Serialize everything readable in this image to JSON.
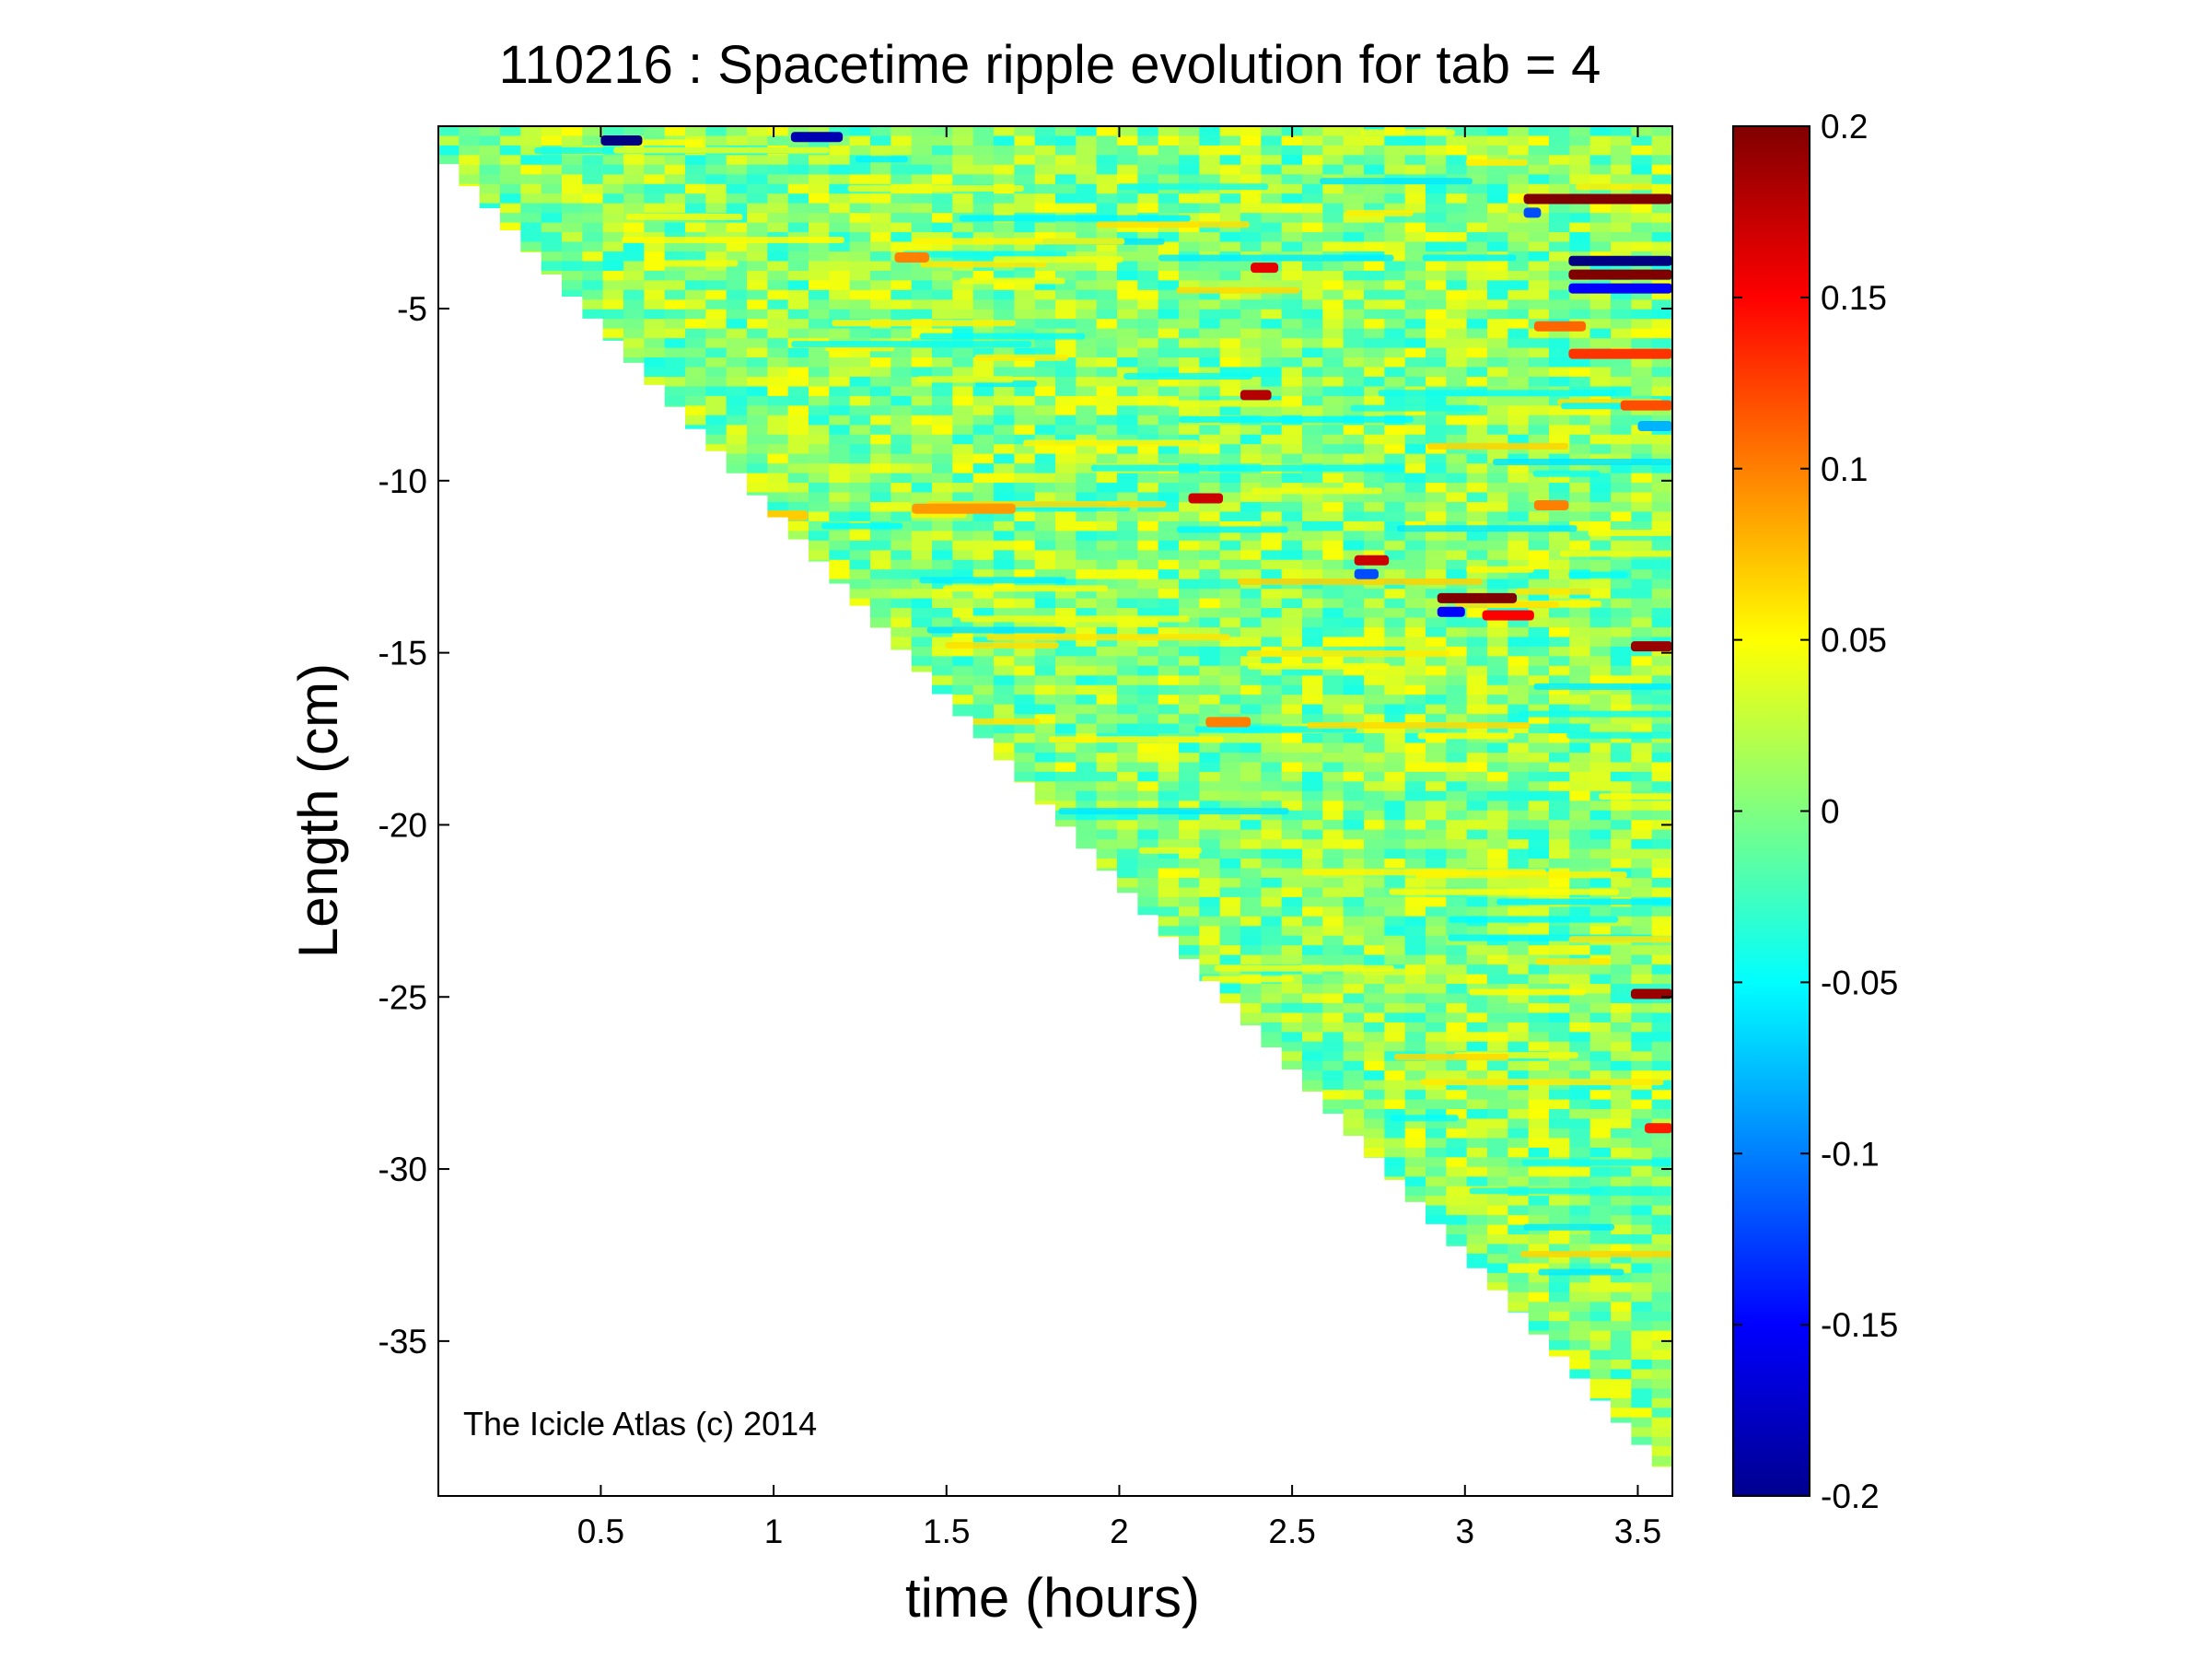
{
  "chart_data": {
    "type": "heatmap",
    "title": "110216 : Spacetime ripple evolution for tab = 4",
    "xlabel": "time (hours)",
    "ylabel": "Length (cm)",
    "xlim": [
      0.03,
      3.6
    ],
    "ylim": [
      -39.5,
      0.3
    ],
    "xticks": [
      0.5,
      1,
      1.5,
      2,
      2.5,
      3,
      3.5
    ],
    "xtick_labels": [
      "0.5",
      "1",
      "1.5",
      "2",
      "2.5",
      "3",
      "3.5"
    ],
    "yticks": [
      -5,
      -10,
      -15,
      -20,
      -25,
      -30,
      -35
    ],
    "ytick_labels": [
      "-5",
      "-10",
      "-15",
      "-20",
      "-25",
      "-30",
      "-35"
    ],
    "colorbar": {
      "colormap": "jet",
      "clim": [
        -0.2,
        0.2
      ],
      "ticks": [
        0.2,
        0.15,
        0.1,
        0.05,
        0,
        -0.05,
        -0.1,
        -0.15,
        -0.2
      ],
      "tick_labels": [
        "0.2",
        "0.15",
        "0.1",
        "0.05",
        "0",
        "-0.05",
        "-0.1",
        "-0.15",
        "-0.2"
      ]
    },
    "data_boundary": {
      "description_units": "lowest measured length (cm) at a given time (hours)",
      "points": [
        [
          0.03,
          -0.8
        ],
        [
          3.6,
          -39.3
        ]
      ]
    },
    "background_value": 0,
    "features": [
      {
        "t_start": 3.17,
        "t_end": 3.6,
        "length": -1.8,
        "value": 0.2
      },
      {
        "t_start": 3.17,
        "t_end": 3.22,
        "length": -2.2,
        "value": -0.12
      },
      {
        "t_start": 3.3,
        "t_end": 3.6,
        "length": -4.0,
        "value": 0.2
      },
      {
        "t_start": 3.3,
        "t_end": 3.6,
        "length": -3.6,
        "value": -0.2
      },
      {
        "t_start": 3.3,
        "t_end": 3.6,
        "length": -4.4,
        "value": -0.15
      },
      {
        "t_start": 2.92,
        "t_end": 3.15,
        "length": -13.4,
        "value": 0.2
      },
      {
        "t_start": 2.92,
        "t_end": 3.0,
        "length": -13.8,
        "value": -0.15
      },
      {
        "t_start": 3.05,
        "t_end": 3.2,
        "length": -13.9,
        "value": 0.15
      },
      {
        "t_start": 2.68,
        "t_end": 2.78,
        "length": -12.3,
        "value": 0.17
      },
      {
        "t_start": 2.68,
        "t_end": 2.75,
        "length": -12.7,
        "value": -0.12
      },
      {
        "t_start": 2.2,
        "t_end": 2.3,
        "length": -10.5,
        "value": 0.17
      },
      {
        "t_start": 2.35,
        "t_end": 2.44,
        "length": -7.5,
        "value": 0.18
      },
      {
        "t_start": 2.38,
        "t_end": 2.46,
        "length": -3.8,
        "value": 0.16
      },
      {
        "t_start": 3.48,
        "t_end": 3.6,
        "length": -14.8,
        "value": 0.19
      },
      {
        "t_start": 3.48,
        "t_end": 3.6,
        "length": -24.9,
        "value": 0.19
      },
      {
        "t_start": 3.52,
        "t_end": 3.6,
        "length": -28.8,
        "value": 0.14
      },
      {
        "t_start": 3.45,
        "t_end": 3.6,
        "length": -7.8,
        "value": 0.12
      },
      {
        "t_start": 3.5,
        "t_end": 3.6,
        "length": -8.4,
        "value": -0.08
      },
      {
        "t_start": 0.5,
        "t_end": 0.62,
        "length": -0.1,
        "value": -0.2
      },
      {
        "t_start": 1.05,
        "t_end": 1.2,
        "length": 0.0,
        "value": -0.18
      },
      {
        "t_start": 3.3,
        "t_end": 3.6,
        "length": -6.3,
        "value": 0.13
      },
      {
        "t_start": 3.2,
        "t_end": 3.35,
        "length": -5.5,
        "value": 0.11
      },
      {
        "t_start": 3.2,
        "t_end": 3.3,
        "length": -10.7,
        "value": 0.1
      },
      {
        "t_start": 1.35,
        "t_end": 1.45,
        "length": -3.5,
        "value": 0.1
      },
      {
        "t_start": 0.9,
        "t_end": 1.1,
        "length": -11.0,
        "value": 0.07
      },
      {
        "t_start": 1.4,
        "t_end": 1.7,
        "length": -10.8,
        "value": 0.09
      },
      {
        "t_start": 2.25,
        "t_end": 2.38,
        "length": -17.0,
        "value": 0.1
      }
    ],
    "annotation": "The Icicle Atlas (c) 2014"
  }
}
